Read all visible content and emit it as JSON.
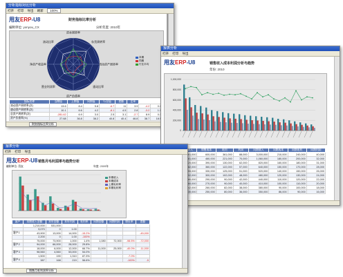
{
  "win1": {
    "title": "分析指标对比分析",
    "toolbar": [
      "打开",
      "打印",
      "导出",
      "刷新",
      "100%"
    ],
    "logo_main": "用友",
    "logo_erp": "ERP",
    "logo_suffix": "-U8",
    "report_title": "财务指标比率分析",
    "company_label": "编制单位: yonyou_CX",
    "year_label": "分析年度: 2010年",
    "radar_labels": [
      "资本周转率",
      "存货周转率",
      "流动资产周转率",
      "速动比率",
      "资产负债率",
      "营业利润率",
      "净资产收益率",
      "流动比率"
    ],
    "legend": [
      "本期",
      "同期",
      "行业平均"
    ],
    "table_headers": [
      "指标名称",
      "当期值",
      "上期值",
      "同期值",
      "行业值",
      "差额",
      "比率"
    ],
    "rows": [
      [
        "流动资产周转率(次)",
        "13.6",
        "8.4",
        "5.8",
        "-6.7",
        "11",
        "3.9",
        "-4.2",
        "0.1"
      ],
      [
        "速动资产周转率(次)",
        "10.1",
        "6.6",
        "4.2",
        "-8.1",
        "4.5",
        "2.8",
        "-3.2",
        "1.1"
      ],
      [
        "总资产周转率(次)",
        "-281.42",
        "6.9",
        "3.0",
        "2.5",
        "3.1",
        "-2.7",
        "8.9",
        "0.3"
      ],
      [
        "资产负债率(%)",
        "27.68",
        "36.8",
        "38.2",
        "40.8",
        "40.4",
        "46.8",
        "38.7",
        "18.5"
      ]
    ],
    "status_tab": "财务指标比率分析"
  },
  "win2": {
    "title": "报表分析",
    "toolbar": [
      "打开",
      "打印",
      "导出"
    ],
    "logo_main": "用友",
    "logo_erp": "ERP",
    "logo_suffix": "-U8",
    "report_title": "销售收入成本利润分析与趋势",
    "filter_label": "年份: 2010",
    "chart_data": {
      "type": "bar",
      "values": [
        900000,
        650000,
        500000,
        480000,
        450000,
        400000,
        380000,
        360000,
        340000,
        330000,
        320000,
        300000,
        290000,
        280000,
        270000,
        260000,
        250000,
        230000,
        220000,
        200000,
        180000,
        160000,
        140000,
        120000
      ],
      "line": [
        82,
        86,
        84,
        70,
        74,
        71,
        73,
        69,
        71,
        70,
        72,
        67,
        62,
        74,
        66,
        70,
        62,
        58,
        64,
        56,
        78,
        60,
        66,
        64
      ],
      "ylim": [
        0,
        1000000
      ]
    },
    "y_ticks": [
      "1,000,000",
      "800,000",
      "600,000",
      "400,000",
      "200,000",
      "0"
    ],
    "table_headers": [
      "",
      "销售收入",
      "销售成本",
      "毛利",
      "利润",
      "同期收入",
      "同期成本",
      "同期毛利",
      "同期利润"
    ],
    "rows": [
      [
        "A产品",
        "961,000",
        "600,000",
        "361,000",
        "88,000",
        "3,000,000",
        "210,000",
        "240,000",
        "40,000"
      ],
      [
        "B产品",
        "681,000",
        "460,000",
        "221,000",
        "70,000",
        "1,060,000",
        "180,000",
        "200,000",
        "32,000"
      ],
      [
        "C产品",
        "520,000",
        "390,000",
        "130,000",
        "62,000",
        "820,000",
        "160,000",
        "180,000",
        "31,000"
      ],
      [
        "D产品",
        "482,000",
        "360,000",
        "122,000",
        "57,000",
        "640,000",
        "150,000",
        "170,000",
        "28,000"
      ],
      [
        "E产品",
        "455,000",
        "330,000",
        "125,000",
        "51,000",
        "520,000",
        "140,000",
        "150,000",
        "26,000"
      ],
      [
        "F产品",
        "402,000",
        "300,000",
        "102,000",
        "48,000",
        "480,000",
        "120,000",
        "130,000",
        "24,000"
      ],
      [
        "G产品",
        "380,000",
        "290,000",
        "90,000",
        "42,000",
        "440,000",
        "110,000",
        "120,000",
        "22,000"
      ],
      [
        "H产品",
        "360,000",
        "270,000",
        "90,000",
        "40,000",
        "410,000",
        "100,000",
        "110,000",
        "20,000"
      ],
      [
        "I产品",
        "342,000",
        "260,000",
        "82,000",
        "38,000",
        "380,000",
        "90,000",
        "100,000",
        "18,000"
      ],
      [
        "J产品",
        "330,000",
        "250,000",
        "80,000",
        "36,000",
        "350,000",
        "86,000",
        "90,000",
        "16,000"
      ]
    ]
  },
  "win3": {
    "title": "报表分析",
    "toolbar": [
      "打开",
      "打印",
      "导出"
    ],
    "logo_main": "用友",
    "logo_erp": "ERP",
    "logo_suffix": "-U8",
    "report_title": "销售月毛利润率与趋势分析",
    "company_label": "编制单位: 用友",
    "year_label": "年度: 2009年",
    "chart_data": {
      "type": "bar",
      "values": [
        95,
        45,
        60,
        22,
        40,
        8,
        14,
        30,
        6,
        4,
        5
      ],
      "values2": [
        70,
        30,
        40,
        15,
        20,
        5,
        10,
        25,
        4,
        3,
        3
      ],
      "ylim": [
        0,
        100
      ]
    },
    "legend": [
      "本期收入",
      "本期成本",
      "上期毛利率",
      "本期毛利率"
    ],
    "table_headers": [
      "客户",
      "本期收入金额",
      "本年金额",
      "本年利润",
      "毛利率",
      "同期金额",
      "同期利润",
      "增长率",
      "差额"
    ],
    "rows": [
      [
        "",
        "1,210,000",
        "531,000",
        "",
        "",
        "",
        "",
        "",
        ""
      ],
      [
        "",
        "9,070",
        "0",
        "1.00",
        "",
        "",
        "",
        "",
        ""
      ],
      [
        "客户1",
        "43,900",
        "13,000",
        "14,000",
        "-15.2%",
        "",
        "",
        "",
        "-45,000"
      ],
      [
        "",
        "2,200",
        "0",
        "1.00",
        "-100%",
        "",
        "",
        "",
        ""
      ],
      [
        "",
        "75,000",
        "73,900",
        "1,000",
        "1.4%",
        "1,080",
        "72,000",
        "-98.5%",
        "-72,000"
      ],
      [
        "客户2",
        "94,000",
        "66,000",
        "28,000",
        "29.8%",
        "",
        "",
        "",
        ""
      ],
      [
        "",
        "18,000",
        "6,000",
        "12,000",
        "66.7%",
        "11,000",
        "25,000",
        "-40.0%",
        "-11,000"
      ],
      [
        "客户3",
        "98,560",
        "4,560",
        "53,000",
        "54.0%",
        "",
        "",
        "",
        ""
      ],
      [
        "",
        "1,500",
        "190",
        "1,310",
        "87.3%",
        "",
        "",
        "-7.0%",
        ""
      ],
      [
        "客户4",
        "387",
        "168",
        "219",
        "56.6%",
        "",
        "",
        "-100%",
        "-5"
      ]
    ],
    "status_tab": "销售月毛利润率分析"
  }
}
